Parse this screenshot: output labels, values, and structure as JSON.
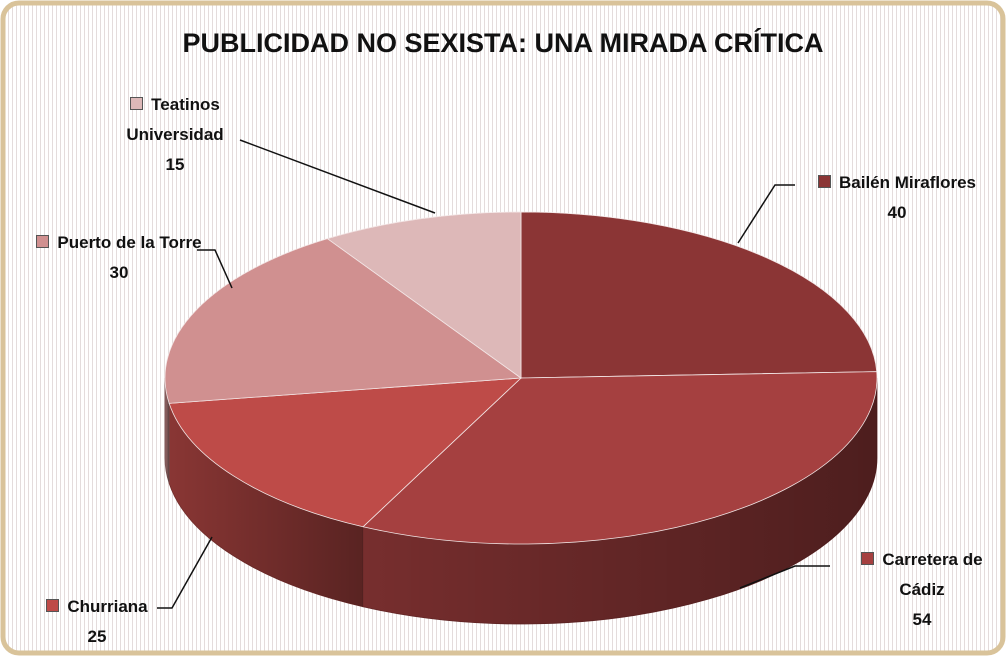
{
  "chart_data": {
    "type": "pie",
    "title": "PUBLICIDAD NO SEXISTA: UNA MIRADA CRÍTICA",
    "categories": [
      "Bailén Miraflores",
      "Carretera de Cádiz",
      "Churriana",
      "Puerto de la Torre",
      "Teatinos Universidad"
    ],
    "values": [
      40,
      54,
      25,
      30,
      15
    ],
    "colors": [
      "#8b3535",
      "#a54040",
      "#be4b48",
      "#d09090",
      "#ddb8b8"
    ]
  }
}
